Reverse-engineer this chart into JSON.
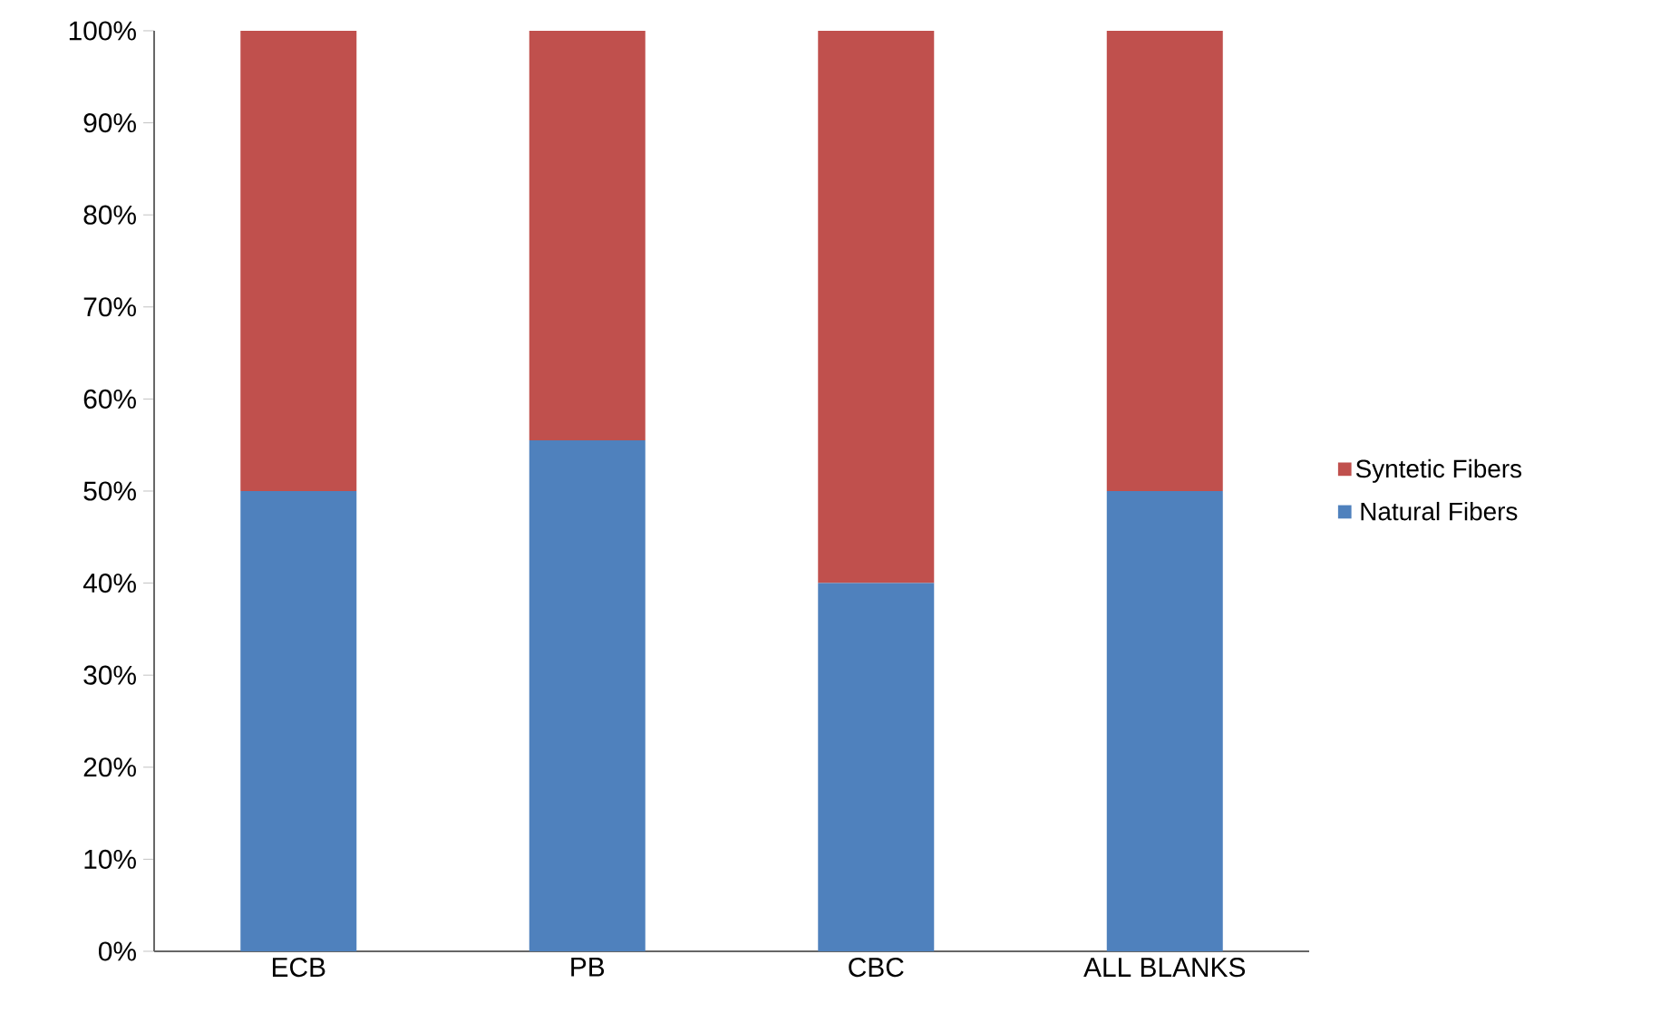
{
  "chart_data": {
    "type": "bar",
    "stacked": true,
    "categories": [
      "ECB",
      "PB",
      "CBC",
      "ALL BLANKS"
    ],
    "series": [
      {
        "name": "Natural Fibers",
        "color": "#4f81bd",
        "values": [
          50,
          55.5,
          40,
          50
        ]
      },
      {
        "name": "Syntetic Fibers",
        "color": "#c0504d",
        "values": [
          50,
          44.5,
          60,
          50
        ]
      }
    ],
    "ylim": [
      0,
      100
    ],
    "yticks": [
      {
        "value": 0,
        "label": "0%"
      },
      {
        "value": 10,
        "label": "10%"
      },
      {
        "value": 20,
        "label": "20%"
      },
      {
        "value": 30,
        "label": "30%"
      },
      {
        "value": 40,
        "label": "40%"
      },
      {
        "value": 50,
        "label": "50%"
      },
      {
        "value": 60,
        "label": "60%"
      },
      {
        "value": 70,
        "label": "70%"
      },
      {
        "value": 80,
        "label": "80%"
      },
      {
        "value": 90,
        "label": "90%"
      },
      {
        "value": 100,
        "label": "100%"
      }
    ],
    "grid": false,
    "legend": "right"
  }
}
